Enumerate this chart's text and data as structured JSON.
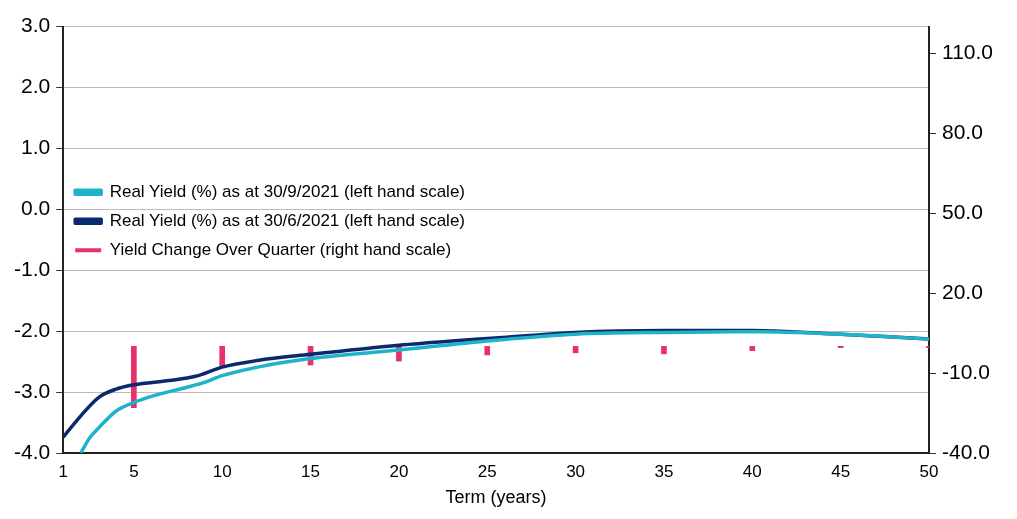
{
  "chart_data": {
    "type": "line",
    "xlabel": "Term (years)",
    "xlim": [
      1,
      50
    ],
    "xticks": [
      1,
      5,
      10,
      15,
      20,
      25,
      30,
      35,
      40,
      45,
      50
    ],
    "ylim": [
      -4,
      3
    ],
    "yticks": [
      {
        "value": -4,
        "label": "-4.0"
      },
      {
        "value": -3,
        "label": "-3.0"
      },
      {
        "value": -2,
        "label": "-2.0"
      },
      {
        "value": -1,
        "label": "-1.0"
      },
      {
        "value": 0,
        "label": "0.0"
      },
      {
        "value": 1,
        "label": "1.0"
      },
      {
        "value": 2,
        "label": "2.0"
      },
      {
        "value": 3,
        "label": "3.0"
      }
    ],
    "y2lim": [
      -40,
      120
    ],
    "y2ticks": [
      {
        "value": -40,
        "label": "-40.0"
      },
      {
        "value": -10,
        "label": "-10.0"
      },
      {
        "value": 20,
        "label": "20.0"
      },
      {
        "value": 50,
        "label": "50.0"
      },
      {
        "value": 80,
        "label": "80.0"
      },
      {
        "value": 110,
        "label": "110.0"
      }
    ],
    "grid": "y",
    "legend": "top",
    "series": [
      {
        "name": "Real Yield (%) as at 30/9/2021 (left hand scale)",
        "color": "#1fb3c9",
        "x": [
          2,
          2.5,
          3,
          4,
          5,
          6,
          8,
          9,
          10,
          12,
          15,
          20,
          25,
          30,
          35,
          40,
          45,
          50
        ],
        "values": [
          -4.0,
          -3.75,
          -3.59,
          -3.31,
          -3.17,
          -3.07,
          -2.92,
          -2.84,
          -2.73,
          -2.59,
          -2.45,
          -2.31,
          -2.16,
          -2.05,
          -2.02,
          -2.01,
          -2.05,
          -2.13
        ]
      },
      {
        "name": "Real Yield (%) as at 30/6/2021 (left hand scale)",
        "color": "#0b2a6e",
        "x": [
          1,
          2,
          3,
          4,
          5,
          7,
          8.5,
          10,
          12,
          15,
          20,
          23,
          25,
          27,
          30,
          35,
          40,
          45,
          50
        ],
        "values": [
          -3.74,
          -3.39,
          -3.09,
          -2.95,
          -2.88,
          -2.81,
          -2.74,
          -2.59,
          -2.48,
          -2.38,
          -2.23,
          -2.16,
          -2.12,
          -2.08,
          -2.02,
          -1.99,
          -1.99,
          -2.05,
          -2.13
        ]
      },
      {
        "name": "Yield Change Over Quarter (right hand scale)",
        "type": "bar",
        "axis": "y2",
        "color": "#e8306a",
        "x": [
          5,
          10,
          15,
          20,
          25,
          30,
          35,
          40,
          45,
          50
        ],
        "values": [
          -23,
          -8,
          -7,
          -5.5,
          -3.2,
          -2.4,
          -2.8,
          -1.6,
          -0.5,
          -0.5
        ]
      }
    ]
  }
}
